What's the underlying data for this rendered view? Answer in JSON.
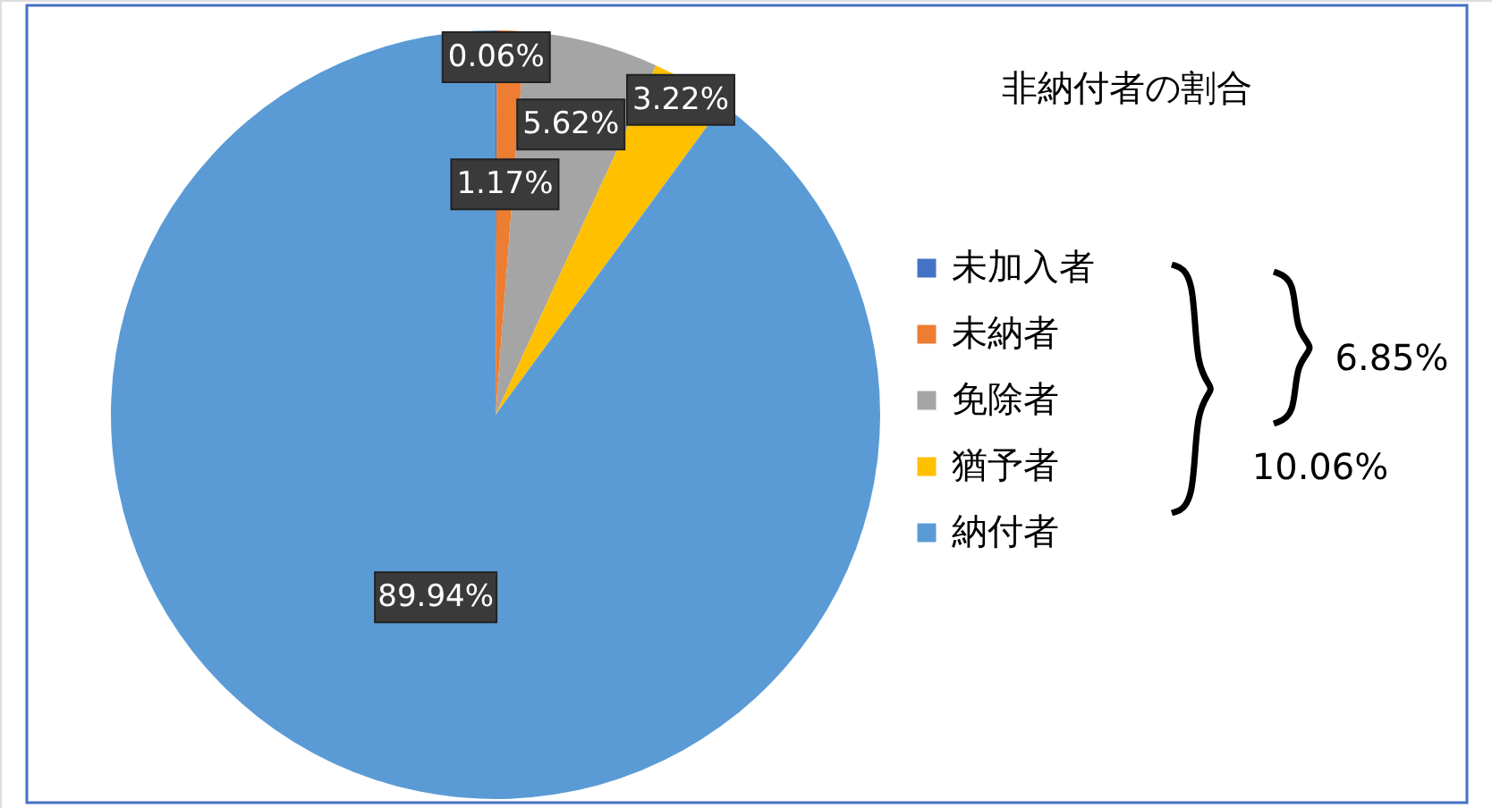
{
  "chart_data": {
    "type": "pie",
    "title": "非納付者の割合",
    "categories": [
      "未加入者",
      "未納者",
      "免除者",
      "猶予者",
      "納付者"
    ],
    "values": [
      0.06,
      1.17,
      5.62,
      3.22,
      89.94
    ],
    "colors": [
      "#4472c4",
      "#ed7d31",
      "#a5a5a5",
      "#ffc000",
      "#5b9bd5"
    ],
    "value_labels": [
      "0.06%",
      "1.17%",
      "5.62%",
      "3.22%",
      "89.94%"
    ],
    "annotations": [
      "6.85%",
      "10.06%"
    ],
    "legend": "right"
  }
}
